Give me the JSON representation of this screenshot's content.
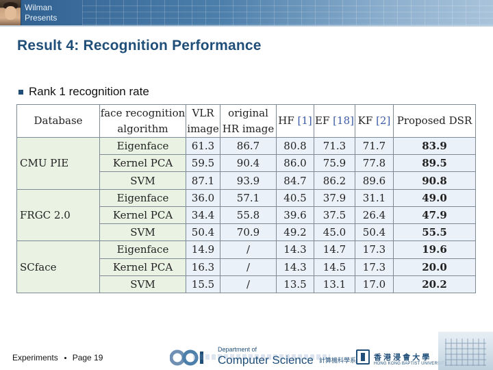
{
  "header": {
    "presenter_name": "Wilman",
    "presenter_subtitle": "Presents"
  },
  "slide": {
    "title": "Result 4: Recognition Performance",
    "bullet": "Rank 1 recognition rate"
  },
  "table": {
    "headers": {
      "database": "Database",
      "algorithm_line1": "face recognition",
      "algorithm_line2": "algorithm",
      "vlr_line1": "VLR",
      "vlr_line2": "image",
      "original_line1": "original",
      "original_line2": "HR image",
      "hf": "HF",
      "hf_ref": "[1]",
      "ef": "EF",
      "ef_ref": "[18]",
      "kf": "KF",
      "kf_ref": "[2]",
      "proposed": "Proposed DSR"
    },
    "groups": [
      {
        "database": "CMU PIE",
        "rows": [
          {
            "algorithm": "Eigenface",
            "vlr": "61.3",
            "original": "86.7",
            "hf": "80.8",
            "ef": "71.3",
            "kf": "71.7",
            "proposed": "83.9"
          },
          {
            "algorithm": "Kernel PCA",
            "vlr": "59.5",
            "original": "90.4",
            "hf": "86.0",
            "ef": "75.9",
            "kf": "77.8",
            "proposed": "89.5"
          },
          {
            "algorithm": "SVM",
            "vlr": "87.1",
            "original": "93.9",
            "hf": "84.7",
            "ef": "86.2",
            "kf": "89.6",
            "proposed": "90.8"
          }
        ]
      },
      {
        "database": "FRGC 2.0",
        "rows": [
          {
            "algorithm": "Eigenface",
            "vlr": "36.0",
            "original": "57.1",
            "hf": "40.5",
            "ef": "37.9",
            "kf": "31.1",
            "proposed": "49.0"
          },
          {
            "algorithm": "Kernel PCA",
            "vlr": "34.4",
            "original": "55.8",
            "hf": "39.6",
            "ef": "37.5",
            "kf": "26.4",
            "proposed": "47.9"
          },
          {
            "algorithm": "SVM",
            "vlr": "50.4",
            "original": "70.9",
            "hf": "49.2",
            "ef": "45.0",
            "kf": "50.4",
            "proposed": "55.5"
          }
        ]
      },
      {
        "database": "SCface",
        "rows": [
          {
            "algorithm": "Eigenface",
            "vlr": "14.9",
            "original": "/",
            "hf": "14.3",
            "ef": "14.7",
            "kf": "17.3",
            "proposed": "19.6"
          },
          {
            "algorithm": "Kernel PCA",
            "vlr": "16.3",
            "original": "/",
            "hf": "14.3",
            "ef": "14.5",
            "kf": "17.3",
            "proposed": "20.0"
          },
          {
            "algorithm": "SVM",
            "vlr": "15.5",
            "original": "/",
            "hf": "13.5",
            "ef": "13.1",
            "kf": "17.0",
            "proposed": "20.2"
          }
        ]
      }
    ]
  },
  "footer": {
    "section": "Experiments",
    "page_label": "Page 19",
    "dept_small": "Department of",
    "dept_big": "Computer Science",
    "dept_chinese": "計算機科學系",
    "university_zh": "香 港 浸 會 大 學",
    "university_en": "HONG KONG BAPTIST UNIVERSITY"
  },
  "colors": {
    "title": "#1f4e79",
    "banner": "#2f5f8f",
    "group_cell": "#eaf2e3",
    "value_cell": "#ebf1f8"
  }
}
